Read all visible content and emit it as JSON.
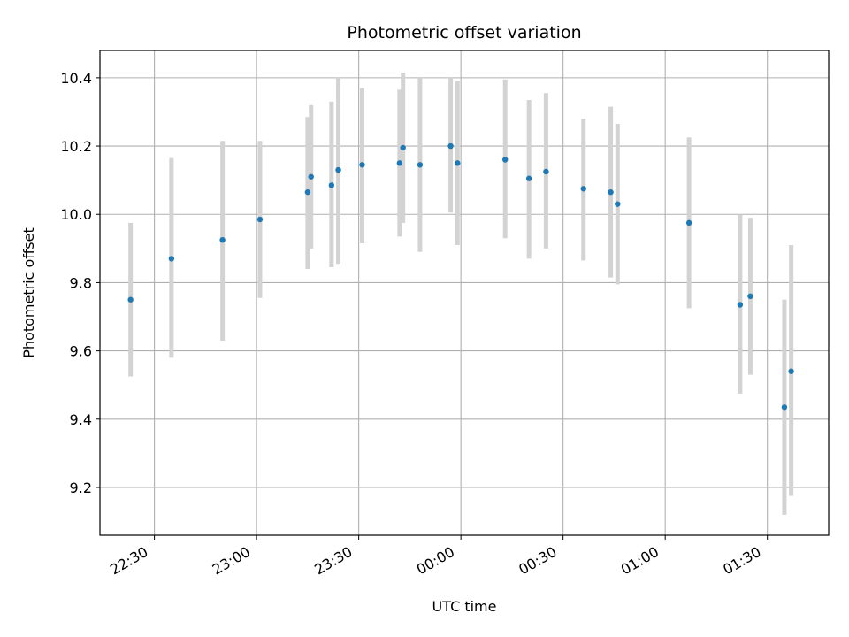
{
  "chart_data": {
    "type": "scatter",
    "title": "Photometric offset variation",
    "xlabel": "UTC time",
    "ylabel": "Photometric offset",
    "x_axis_type": "time",
    "x_start": "2024-01-01T22:14",
    "x_end": "2024-01-02T01:48",
    "xlim": [
      "22:14",
      "01:48"
    ],
    "ylim": [
      9.06,
      10.48
    ],
    "x_ticks": [
      {
        "value": "22:30",
        "label": "22:30"
      },
      {
        "value": "23:00",
        "label": "23:00"
      },
      {
        "value": "23:30",
        "label": "23:30"
      },
      {
        "value": "00:00",
        "label": "00:00"
      },
      {
        "value": "00:30",
        "label": "00:30"
      },
      {
        "value": "01:00",
        "label": "01:00"
      },
      {
        "value": "01:30",
        "label": "01:30"
      }
    ],
    "y_ticks": [
      9.2,
      9.4,
      9.6,
      9.8,
      10.0,
      10.2,
      10.4
    ],
    "y_tick_labels": [
      "9.2",
      "9.4",
      "9.6",
      "9.8",
      "10.0",
      "10.2",
      "10.4"
    ],
    "grid": true,
    "colors": {
      "point": "#1f77b4",
      "errorbar": "#d3d3d3",
      "grid": "#b0b0b0"
    },
    "series": [
      {
        "points": [
          {
            "x": "22:23",
            "y": 9.75,
            "err_low": 9.525,
            "err_high": 9.975
          },
          {
            "x": "22:35",
            "y": 9.87,
            "err_low": 9.58,
            "err_high": 10.165
          },
          {
            "x": "22:50",
            "y": 9.925,
            "err_low": 9.63,
            "err_high": 10.215
          },
          {
            "x": "23:01",
            "y": 9.985,
            "err_low": 9.755,
            "err_high": 10.215
          },
          {
            "x": "23:15",
            "y": 10.065,
            "err_low": 9.84,
            "err_high": 10.285
          },
          {
            "x": "23:16",
            "y": 10.11,
            "err_low": 9.9,
            "err_high": 10.32
          },
          {
            "x": "23:22",
            "y": 10.085,
            "err_low": 9.845,
            "err_high": 10.33
          },
          {
            "x": "23:24",
            "y": 10.13,
            "err_low": 9.855,
            "err_high": 10.4
          },
          {
            "x": "23:31",
            "y": 10.145,
            "err_low": 9.915,
            "err_high": 10.37
          },
          {
            "x": "23:42",
            "y": 10.15,
            "err_low": 9.935,
            "err_high": 10.365
          },
          {
            "x": "23:43",
            "y": 10.195,
            "err_low": 9.975,
            "err_high": 10.415
          },
          {
            "x": "23:48",
            "y": 10.145,
            "err_low": 9.89,
            "err_high": 10.4
          },
          {
            "x": "23:57",
            "y": 10.2,
            "err_low": 10.005,
            "err_high": 10.4
          },
          {
            "x": "23:59",
            "y": 10.15,
            "err_low": 9.91,
            "err_high": 10.39
          },
          {
            "x": "00:13",
            "y": 10.16,
            "err_low": 9.93,
            "err_high": 10.395
          },
          {
            "x": "00:20",
            "y": 10.105,
            "err_low": 9.87,
            "err_high": 10.335
          },
          {
            "x": "00:25",
            "y": 10.125,
            "err_low": 9.9,
            "err_high": 10.355
          },
          {
            "x": "00:36",
            "y": 10.075,
            "err_low": 9.865,
            "err_high": 10.28
          },
          {
            "x": "00:44",
            "y": 10.065,
            "err_low": 9.815,
            "err_high": 10.315
          },
          {
            "x": "00:46",
            "y": 10.03,
            "err_low": 9.795,
            "err_high": 10.265
          },
          {
            "x": "01:07",
            "y": 9.975,
            "err_low": 9.725,
            "err_high": 10.225
          },
          {
            "x": "01:22",
            "y": 9.735,
            "err_low": 9.475,
            "err_high": 10.0
          },
          {
            "x": "01:25",
            "y": 9.76,
            "err_low": 9.53,
            "err_high": 9.99
          },
          {
            "x": "01:35",
            "y": 9.435,
            "err_low": 9.12,
            "err_high": 9.75
          },
          {
            "x": "01:37",
            "y": 9.54,
            "err_low": 9.175,
            "err_high": 9.91
          }
        ]
      }
    ]
  }
}
